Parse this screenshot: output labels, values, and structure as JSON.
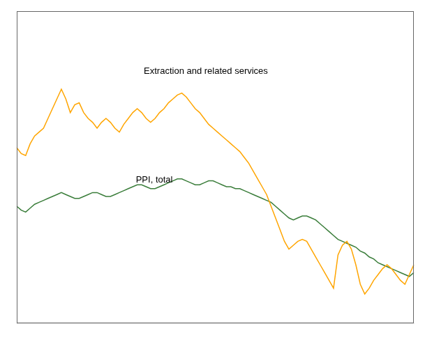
{
  "chart_data": {
    "type": "line",
    "categories": [
      null,
      null,
      null,
      null,
      null,
      null,
      null,
      null,
      null,
      null,
      null,
      null,
      null,
      null,
      null,
      null,
      null,
      null,
      null,
      null,
      null,
      null,
      null,
      null,
      null,
      null,
      null,
      null,
      null,
      null,
      null,
      null,
      null,
      null,
      null,
      null,
      null,
      null,
      null,
      null,
      null,
      null,
      null,
      null,
      null,
      null,
      null,
      null,
      null,
      null,
      null,
      null,
      null,
      null,
      null,
      null,
      null,
      null,
      null,
      null,
      null,
      null,
      null,
      null,
      null,
      null,
      null,
      null,
      null,
      null,
      null,
      null,
      null,
      null,
      null,
      null,
      null,
      null,
      null,
      null,
      null,
      null,
      null,
      null,
      null,
      null,
      null,
      null,
      null,
      null
    ],
    "series": [
      {
        "name": "Extraction and related services",
        "color": "#FFA500",
        "values": [
          130,
          127,
          126,
          132,
          136,
          138,
          140,
          145,
          150,
          155,
          160,
          155,
          148,
          152,
          153,
          148,
          145,
          143,
          140,
          143,
          145,
          143,
          140,
          138,
          142,
          145,
          148,
          150,
          148,
          145,
          143,
          145,
          148,
          150,
          153,
          155,
          157,
          158,
          156,
          153,
          150,
          148,
          145,
          142,
          140,
          138,
          136,
          134,
          132,
          130,
          128,
          125,
          122,
          118,
          114,
          110,
          106,
          100,
          94,
          88,
          82,
          78,
          80,
          82,
          83,
          82,
          78,
          74,
          70,
          66,
          62,
          58,
          75,
          80,
          82,
          78,
          70,
          60,
          55,
          58,
          62,
          65,
          68,
          70,
          68,
          65,
          62,
          60,
          65,
          70
        ]
      },
      {
        "name": "PPI, total",
        "color": "#3a7d3a",
        "values": [
          100,
          98,
          97,
          99,
          101,
          102,
          103,
          104,
          105,
          106,
          107,
          106,
          105,
          104,
          104,
          105,
          106,
          107,
          107,
          106,
          105,
          105,
          106,
          107,
          108,
          109,
          110,
          111,
          111,
          110,
          109,
          109,
          110,
          111,
          112,
          113,
          114,
          114,
          113,
          112,
          111,
          111,
          112,
          113,
          113,
          112,
          111,
          110,
          110,
          109,
          109,
          108,
          107,
          106,
          105,
          104,
          103,
          102,
          100,
          98,
          96,
          94,
          93,
          94,
          95,
          95,
          94,
          93,
          91,
          89,
          87,
          85,
          83,
          82,
          81,
          80,
          79,
          77,
          76,
          74,
          73,
          71,
          70,
          69,
          68,
          67,
          66,
          65,
          64,
          66
        ]
      }
    ],
    "ylim": [
      40,
      200
    ],
    "grid": false,
    "tick_labels": false
  }
}
